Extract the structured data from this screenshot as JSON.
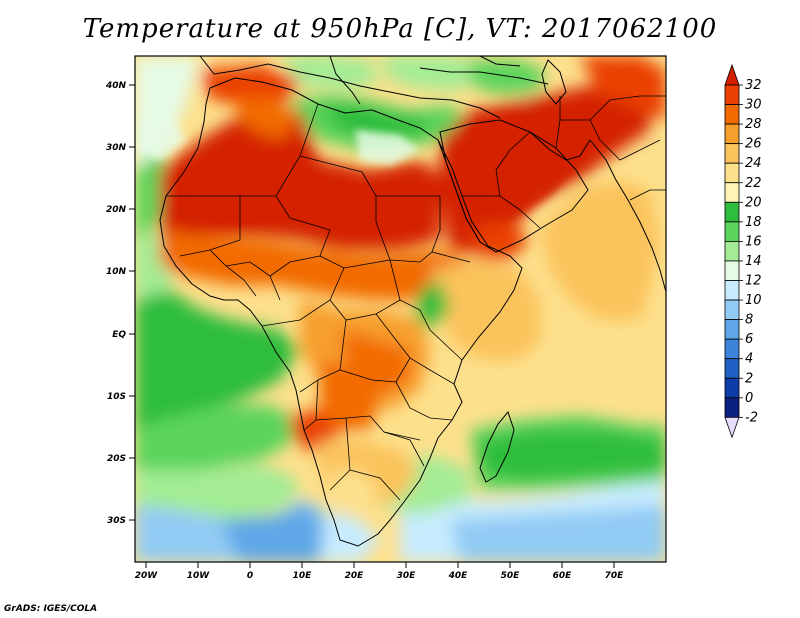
{
  "title": "Temperature at 950hPa [C], VT: 2017062100",
  "credit": "GrADS: IGES/COLA",
  "map": {
    "lon_ticks": [
      "20W",
      "10W",
      "0",
      "10E",
      "20E",
      "30E",
      "40E",
      "50E",
      "60E",
      "70E"
    ],
    "lat_ticks": [
      "40N",
      "30N",
      "20N",
      "10N",
      "EQ",
      "10S",
      "20S",
      "30S"
    ]
  },
  "colorbar": {
    "labels": [
      "32",
      "30",
      "28",
      "26",
      "24",
      "22",
      "20",
      "18",
      "16",
      "14",
      "12",
      "10",
      "8",
      "6",
      "4",
      "2",
      "0",
      "-2"
    ],
    "colors": [
      "#d42000",
      "#ea3f00",
      "#f26a00",
      "#f79f2d",
      "#fbc35c",
      "#fde08c",
      "#fff6b6",
      "#2fbd3e",
      "#5cd45c",
      "#a3ec95",
      "#e6fbe6",
      "#c8ecff",
      "#92cbf4",
      "#5fa7e8",
      "#3c83d9",
      "#1f60c4",
      "#0d3ba8",
      "#0a1f7e",
      "#e6ddfa"
    ]
  }
}
